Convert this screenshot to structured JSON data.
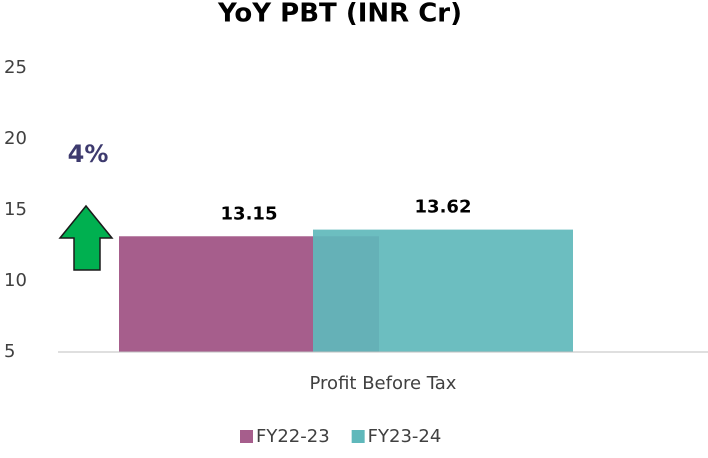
{
  "chart_data": {
    "type": "bar",
    "title": "YoY PBT (INR Cr)",
    "categories": [
      "Profit Before Tax"
    ],
    "series": [
      {
        "name": "FY22-23",
        "color": "#a65e8c",
        "values": [
          13.15
        ]
      },
      {
        "name": "FY23-24",
        "color": "#5fb8bb",
        "values": [
          13.62
        ]
      }
    ],
    "ylim": [
      5,
      25
    ],
    "yticks": [
      5,
      10,
      15,
      20,
      25
    ],
    "grid": false,
    "legend": "bottom",
    "annotations": [
      "4%"
    ]
  }
}
